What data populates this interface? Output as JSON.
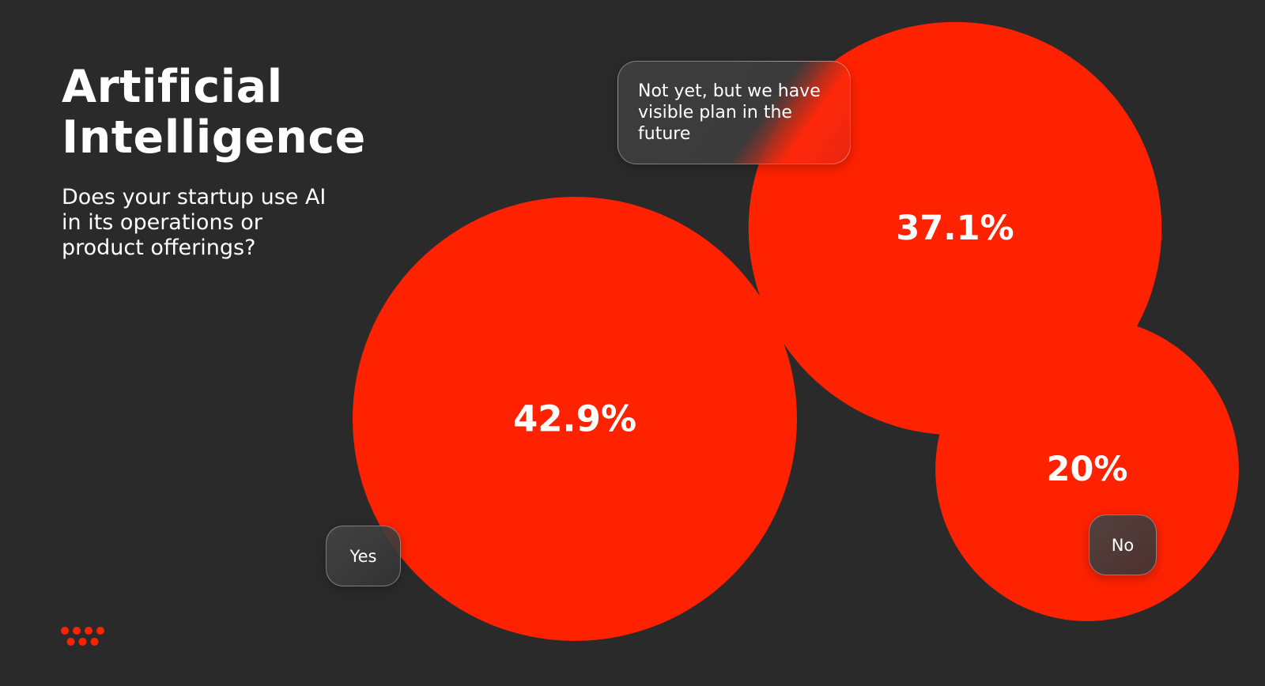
{
  "header": {
    "title": "Artificial Intelligence",
    "subtitle": "Does your startup use AI in its operations or product offerings?"
  },
  "chart_data": {
    "type": "bubble",
    "series": [
      {
        "name": "Yes",
        "value": 42.9,
        "value_label": "42.9%"
      },
      {
        "name": "Not yet, but we have visible plan in the future",
        "value": 37.1,
        "value_label": "37.1%"
      },
      {
        "name": "No",
        "value": 20,
        "value_label": "20%"
      }
    ]
  },
  "labels": {
    "yes": "Yes",
    "not_yet": "Not yet, but we have visible plan in the future",
    "no": "No"
  },
  "colors": {
    "background": "#2a2a2a",
    "accent": "#ff2200",
    "text": "#ffffff"
  },
  "logo": {
    "icon": "dots-logo-icon"
  }
}
